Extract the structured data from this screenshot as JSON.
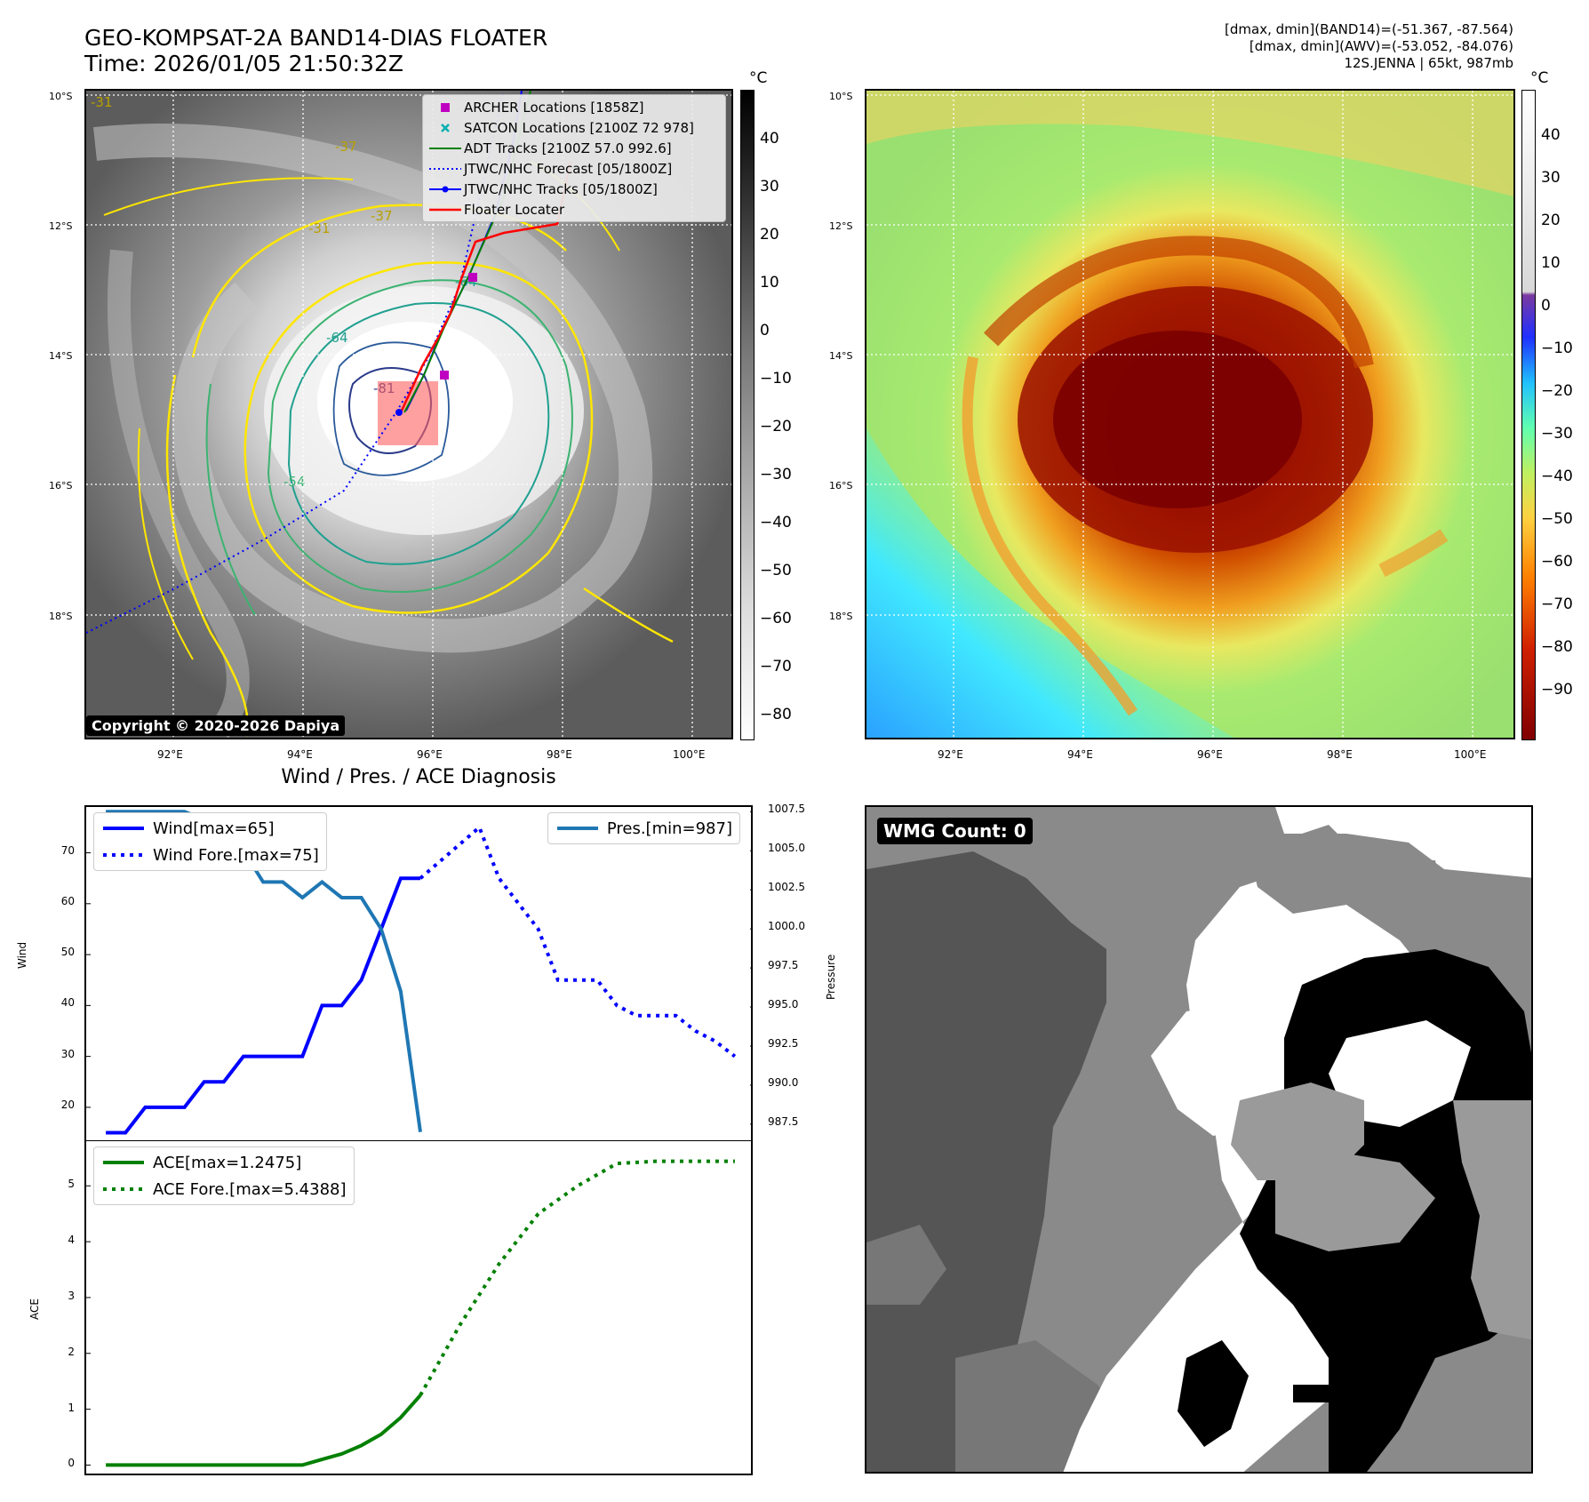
{
  "header": {
    "title_line1": "GEO-KOMPSAT-2A BAND14-DIAS FLOATER",
    "title_line2": "Time: 2026/01/05 21:50:32Z",
    "info_line1": "[dmax, dmin](BAND14)=(-51.367, -87.564)",
    "info_line2": "[dmax, dmin](AWV)=(-53.052, -84.076)",
    "info_line3": "12S.JENNA | 65kt, 987mb"
  },
  "map_axes": {
    "lat_labels": [
      "10°S",
      "12°S",
      "14°S",
      "16°S",
      "18°S"
    ],
    "lon_labels": [
      "92°E",
      "94°E",
      "96°E",
      "98°E",
      "100°E"
    ]
  },
  "ir_panel": {
    "legend": [
      {
        "label": "ARCHER Locations [1858Z]",
        "color": "#c000c0",
        "icon": "square-marker-icon"
      },
      {
        "label": "SATCON Locations [2100Z 72 978]",
        "color": "#00b0b0",
        "icon": "x-marker-icon"
      },
      {
        "label": "ADT Tracks [2100Z 57.0 992.6]",
        "color": "#008000",
        "icon": "line-icon"
      },
      {
        "label": "JTWC/NHC Forecast [05/1800Z]",
        "color": "#0000ff",
        "icon": "dotted-line-icon"
      },
      {
        "label": "JTWC/NHC Tracks [05/1800Z]",
        "color": "#0000ff",
        "icon": "line-dot-icon"
      },
      {
        "label": "Floater Locater",
        "color": "#ff0000",
        "icon": "line-icon"
      }
    ],
    "colorbar_unit": "°C",
    "colorbar_ticks": [
      "40",
      "30",
      "20",
      "10",
      "0",
      "−10",
      "−20",
      "−30",
      "−40",
      "−50",
      "−60",
      "−70",
      "−80"
    ],
    "contour_labels": [
      "-81",
      "-64",
      "-64",
      "-54",
      "-37",
      "-31",
      "-37",
      "-31"
    ],
    "copyright": "Copyright © 2020-2026 Dapiya"
  },
  "awv_panel": {
    "colorbar_unit": "°C",
    "colorbar_ticks": [
      "40",
      "30",
      "20",
      "10",
      "0",
      "−10",
      "−20",
      "−30",
      "−40",
      "−50",
      "−60",
      "−70",
      "−80",
      "−90"
    ]
  },
  "wmg_panel": {
    "label": "WMG Count: 0"
  },
  "diagnosis": {
    "title": "Wind / Pres. / ACE Diagnosis"
  },
  "chart_data": [
    {
      "type": "line",
      "title": "Wind / Pres. / ACE Diagnosis",
      "ylabel": "Wind",
      "y2label": "Pressure",
      "ylim": [
        13,
        79
      ],
      "y2lim": [
        986.3,
        1007.8
      ],
      "yticks": [
        "70",
        "60",
        "50",
        "40",
        "30",
        "20"
      ],
      "y2ticks": [
        "1007.5",
        "1005.0",
        "1002.5",
        "1000.0",
        "997.5",
        "995.0",
        "992.5",
        "990.0",
        "987.5"
      ],
      "series": [
        {
          "name": "Wind[max=65]",
          "axis": "left",
          "color": "#0000ff",
          "style": "solid",
          "x": [
            0,
            1,
            2,
            3,
            4,
            5,
            6,
            7,
            8,
            9,
            10,
            11,
            12,
            13,
            14,
            15,
            16
          ],
          "values": [
            15,
            15,
            20,
            20,
            20,
            25,
            25,
            30,
            30,
            30,
            30,
            40,
            40,
            45,
            55,
            65,
            65
          ]
        },
        {
          "name": "Wind Fore.[max=75]",
          "axis": "left",
          "color": "#0000ff",
          "style": "dotted",
          "x": [
            16,
            19,
            20,
            22,
            23,
            24,
            25,
            26,
            27,
            28,
            29,
            30,
            31,
            32
          ],
          "values": [
            65,
            75,
            65,
            55,
            45,
            45,
            45,
            40,
            38,
            38,
            38,
            35,
            33,
            30
          ]
        },
        {
          "name": "Pres.[min=987]",
          "axis": "right",
          "color": "#1f77b4",
          "style": "solid",
          "x": [
            0,
            1,
            2,
            3,
            4,
            5,
            6,
            7,
            8,
            9,
            10,
            11,
            12,
            13,
            14,
            15,
            16
          ],
          "values": [
            1007.5,
            1007.5,
            1007.5,
            1007.5,
            1007.5,
            1007.0,
            1007.0,
            1005.0,
            1003.0,
            1003.0,
            1002.0,
            1003.0,
            1002.0,
            1002.0,
            1000.0,
            996.0,
            987.0
          ]
        }
      ]
    },
    {
      "type": "line",
      "ylabel": "ACE",
      "ylim": [
        -0.2,
        5.8
      ],
      "yticks": [
        "5",
        "4",
        "3",
        "2",
        "1",
        "0"
      ],
      "series": [
        {
          "name": "ACE[max=1.2475]",
          "color": "#008000",
          "style": "solid",
          "x": [
            0,
            1,
            2,
            3,
            4,
            5,
            6,
            7,
            8,
            9,
            10,
            11,
            12,
            13,
            14,
            15,
            16
          ],
          "values": [
            0,
            0,
            0,
            0,
            0,
            0,
            0,
            0,
            0,
            0,
            0,
            0.1,
            0.2,
            0.35,
            0.55,
            0.85,
            1.25
          ]
        },
        {
          "name": "ACE Fore.[max=5.4388]",
          "color": "#008000",
          "style": "dotted",
          "x": [
            16,
            18,
            20,
            22,
            24,
            26,
            28,
            30,
            32
          ],
          "values": [
            1.25,
            2.5,
            3.6,
            4.5,
            5.0,
            5.4,
            5.44,
            5.44,
            5.44
          ]
        }
      ]
    }
  ]
}
